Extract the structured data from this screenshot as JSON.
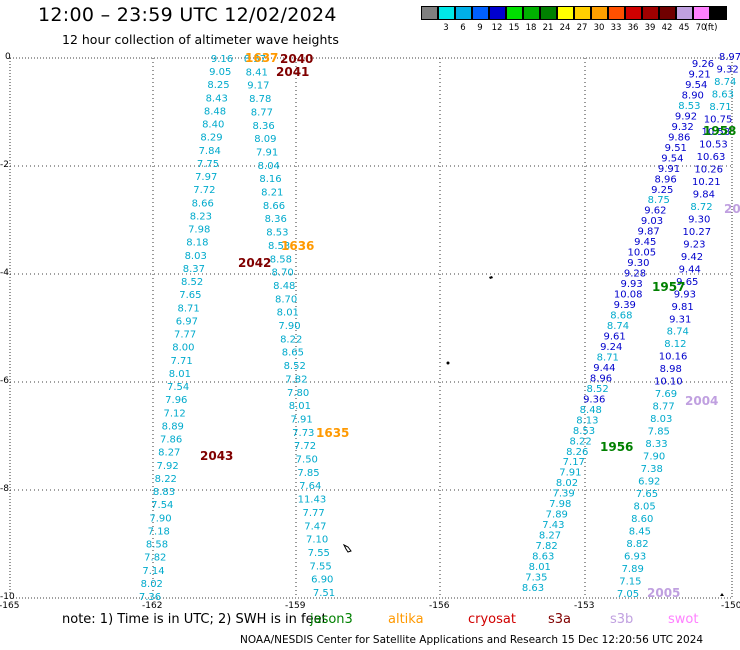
{
  "header": {
    "title": "12:00 – 23:59 UTC 12/02/2024",
    "subtitle": "12 hour collection of altimeter wave heights"
  },
  "colorbar": {
    "unit_label": "(ft)",
    "swatches": [
      {
        "color": "#808080",
        "label": ""
      },
      {
        "color": "#00e8e8",
        "label": "3"
      },
      {
        "color": "#00b0e8",
        "label": "6"
      },
      {
        "color": "#0060ff",
        "label": "9"
      },
      {
        "color": "#0000d0",
        "label": "12"
      },
      {
        "color": "#00e000",
        "label": "15"
      },
      {
        "color": "#00b000",
        "label": "18"
      },
      {
        "color": "#008000",
        "label": "21"
      },
      {
        "color": "#ffff00",
        "label": "24"
      },
      {
        "color": "#ffd000",
        "label": "27"
      },
      {
        "color": "#ffa000",
        "label": "30"
      },
      {
        "color": "#ff5000",
        "label": "33"
      },
      {
        "color": "#d00000",
        "label": "36"
      },
      {
        "color": "#a00000",
        "label": "39"
      },
      {
        "color": "#700000",
        "label": "42"
      },
      {
        "color": "#c0a0e0",
        "label": "45"
      },
      {
        "color": "#ff80ff",
        "label": "70"
      },
      {
        "color": "#000000",
        "label": ""
      }
    ]
  },
  "axes": {
    "y_ticks": [
      "0",
      "-2",
      "-4",
      "-6",
      "-8",
      "-10"
    ],
    "x_ticks": [
      "-165",
      "-162",
      "-159",
      "-156",
      "-153",
      "-150"
    ]
  },
  "time_labels": [
    {
      "text": "2040",
      "color": "#800000"
    },
    {
      "text": "2041",
      "color": "#800000"
    },
    {
      "text": "2042",
      "color": "#800000"
    },
    {
      "text": "2043",
      "color": "#800000"
    },
    {
      "text": "1637",
      "color": "#ff9900"
    },
    {
      "text": "1636",
      "color": "#ff9900"
    },
    {
      "text": "1635",
      "color": "#ff9900"
    },
    {
      "text": "1958",
      "color": "#008000"
    },
    {
      "text": "1957",
      "color": "#008000"
    },
    {
      "text": "1956",
      "color": "#008000"
    },
    {
      "text": "2004",
      "color": "#c0a0e0"
    },
    {
      "text": "2005",
      "color": "#c0a0e0"
    },
    {
      "text": "20",
      "color": "#c0a0e0"
    }
  ],
  "tracks": {
    "track_a": [
      "9.16",
      "9.05",
      "8.25",
      "8.43",
      "8.48",
      "8.40",
      "8.29",
      "7.84",
      "7.75",
      "7.97",
      "7.72",
      "8.66",
      "8.23",
      "7.98",
      "8.18",
      "8.03",
      "8.37",
      "8.52",
      "7.65",
      "8.71",
      "6.97",
      "7.77",
      "8.00",
      "7.71",
      "8.01",
      "7.54",
      "7.96",
      "7.12",
      "8.89",
      "7.86",
      "8.27",
      "7.92",
      "8.22",
      "8.83",
      "7.54",
      "7.90",
      "7.18",
      "8.58",
      "7.82",
      "7.14",
      "8.02",
      "7.36"
    ],
    "track_b": [
      "8.57",
      "8.41",
      "9.17",
      "8.78",
      "8.77",
      "8.36",
      "8.09",
      "7.91",
      "8.04",
      "8.16",
      "8.21",
      "8.66",
      "8.36",
      "8.53",
      "8.53",
      "8.58",
      "8.70",
      "8.48",
      "8.70",
      "8.01",
      "7.90",
      "8.22",
      "8.65",
      "8.52",
      "7.82",
      "7.80",
      "8.01",
      "7.91",
      "7.73",
      "7.72",
      "7.50",
      "7.85",
      "7.64",
      "11.43",
      "7.77",
      "7.47",
      "7.10",
      "7.55",
      "7.55",
      "6.90",
      "7.51"
    ],
    "track_c": [
      "9.26",
      "9.21",
      "9.54",
      "8.90",
      "8.53",
      "9.92",
      "9.32",
      "9.86",
      "9.51",
      "9.54",
      "9.91",
      "8.96",
      "9.25",
      "8.75",
      "9.62",
      "9.03",
      "9.87",
      "9.45",
      "10.05",
      "9.30",
      "9.28",
      "9.93",
      "10.08",
      "9.39",
      "8.68",
      "8.74",
      "9.61",
      "9.24",
      "8.71",
      "9.44",
      "8.96",
      "8.52",
      "9.36",
      "8.48",
      "8.13",
      "8.53",
      "8.22",
      "8.26",
      "7.17",
      "7.91",
      "8.02",
      "7.39",
      "7.98",
      "7.89",
      "7.43",
      "8.27",
      "7.82",
      "8.63",
      "8.01",
      "7.35",
      "8.63"
    ],
    "track_d": [
      "8.97",
      "9.32",
      "8.74",
      "8.63",
      "8.71",
      "10.75",
      "10.58",
      "10.53",
      "10.63",
      "10.26",
      "10.21",
      "9.84",
      "8.72",
      "9.30",
      "10.27",
      "9.23",
      "9.42",
      "9.44",
      "9.65",
      "9.93",
      "9.81",
      "9.31",
      "8.74",
      "8.12",
      "10.16",
      "8.98",
      "10.10",
      "7.69",
      "8.77",
      "8.03",
      "7.85",
      "8.33",
      "7.90",
      "7.38",
      "6.92",
      "7.65",
      "8.05",
      "8.60",
      "8.45",
      "8.82",
      "6.93",
      "7.89",
      "7.15",
      "7.05"
    ]
  },
  "footer": {
    "note": "note:  1) Time is in UTC; 2) SWH is in feet",
    "satellites": [
      {
        "name": "jason3",
        "color": "#008000"
      },
      {
        "name": "altika",
        "color": "#ff9900"
      },
      {
        "name": "cryosat",
        "color": "#d00000"
      },
      {
        "name": "s3a",
        "color": "#800000"
      },
      {
        "name": "s3b",
        "color": "#c0a0e0"
      },
      {
        "name": "swot",
        "color": "#ff80ff"
      }
    ],
    "credit": "NOAA/NESDIS Center for Satellite Applications and Research    15 Dec 12:20:56 UTC 2024"
  },
  "colors": {
    "cyan_dark": "#00aacc",
    "blue_dark": "#0000cc",
    "grid": "#000000"
  }
}
